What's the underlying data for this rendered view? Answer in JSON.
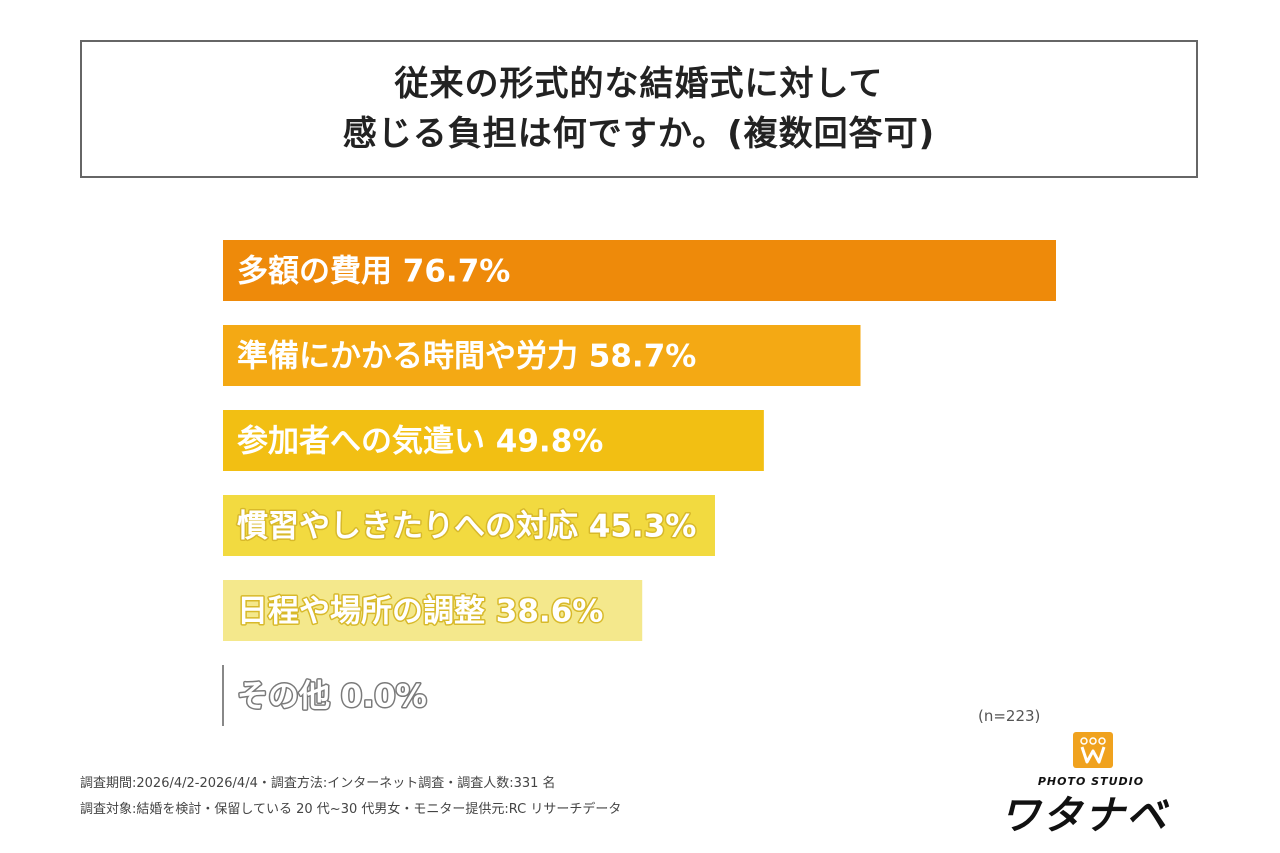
{
  "title": {
    "line1": "従来の形式的な結婚式に対して",
    "line2": "感じる負担は何ですか。(複数回答可)"
  },
  "chart_data": {
    "type": "bar",
    "orientation": "horizontal",
    "categories": [
      "多額の費用",
      "準備にかかる時間や労力",
      "参加者への気遣い",
      "慣習やしきたりへの対応",
      "日程や場所の調整",
      "その他"
    ],
    "values": [
      76.7,
      58.7,
      49.8,
      45.3,
      38.6,
      0.0
    ],
    "labels": [
      "多額の費用 76.7%",
      "準備にかかる時間や労力 58.7%",
      "参加者への気遣い 49.8%",
      "慣習やしきたりへの対応 45.3%",
      "日程や場所の調整 38.6%",
      "その他 0.0%"
    ],
    "unit": "%",
    "colors": [
      "#EE8A0A",
      "#F4A914",
      "#F2BF13",
      "#F2DA40",
      "#F4E88C",
      "#888888"
    ],
    "sample_size": "(n=223)"
  },
  "footer": {
    "line1": "調査期間:2026/4/2-2026/4/4・調査方法:インターネット調査・調査人数:331 名",
    "line2": "調査対象:結婚を検討・保留している 20 代~30 代男女・モニター提供元:RC リサーチデータ"
  },
  "logo": {
    "sub": "PHOTO STUDIO",
    "main": "ワタナベ",
    "color": "#F0A21E"
  }
}
